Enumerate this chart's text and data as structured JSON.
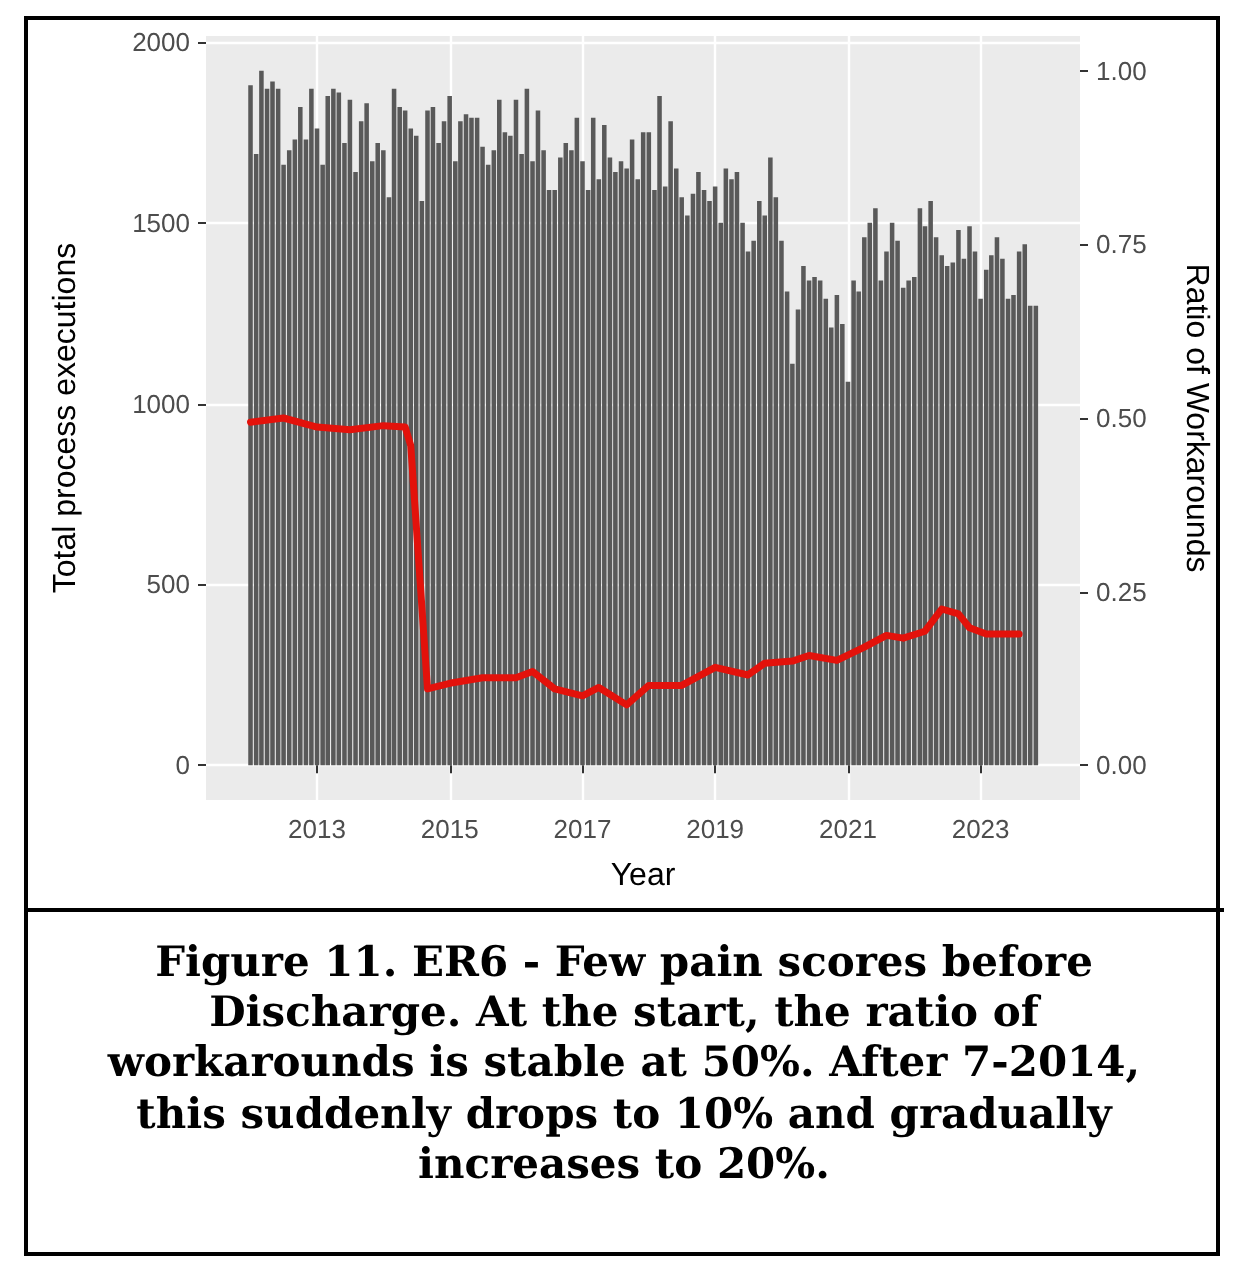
{
  "chart_data": {
    "type": "bar",
    "xlabel": "Year",
    "ylabel": "Total process executions",
    "y2label": "Ratio of Workarounds",
    "annotations": [
      "Figure 11. ER6 - Few pain scores before Discharge. At the start, the ratio of workarounds is stable at 50%. After 7-2014, this suddenly drops to 10% and gradually increases to 20%."
    ],
    "x": [
      "2012-01",
      "2012-02",
      "2012-03",
      "2012-04",
      "2012-05",
      "2012-06",
      "2012-07",
      "2012-08",
      "2012-09",
      "2012-10",
      "2012-11",
      "2012-12",
      "2013-01",
      "2013-02",
      "2013-03",
      "2013-04",
      "2013-05",
      "2013-06",
      "2013-07",
      "2013-08",
      "2013-09",
      "2013-10",
      "2013-11",
      "2013-12",
      "2014-01",
      "2014-02",
      "2014-03",
      "2014-04",
      "2014-05",
      "2014-06",
      "2014-07",
      "2014-08",
      "2014-09",
      "2014-10",
      "2014-11",
      "2014-12",
      "2015-01",
      "2015-02",
      "2015-03",
      "2015-04",
      "2015-05",
      "2015-06",
      "2015-07",
      "2015-08",
      "2015-09",
      "2015-10",
      "2015-11",
      "2015-12",
      "2016-01",
      "2016-02",
      "2016-03",
      "2016-04",
      "2016-05",
      "2016-06",
      "2016-07",
      "2016-08",
      "2016-09",
      "2016-10",
      "2016-11",
      "2016-12",
      "2017-01",
      "2017-02",
      "2017-03",
      "2017-04",
      "2017-05",
      "2017-06",
      "2017-07",
      "2017-08",
      "2017-09",
      "2017-10",
      "2017-11",
      "2017-12",
      "2018-01",
      "2018-02",
      "2018-03",
      "2018-04",
      "2018-05",
      "2018-06",
      "2018-07",
      "2018-08",
      "2018-09",
      "2018-10",
      "2018-11",
      "2018-12",
      "2019-01",
      "2019-02",
      "2019-03",
      "2019-04",
      "2019-05",
      "2019-06",
      "2019-07",
      "2019-08",
      "2019-09",
      "2019-10",
      "2019-11",
      "2019-12",
      "2020-01",
      "2020-02",
      "2020-03",
      "2020-04",
      "2020-05",
      "2020-06",
      "2020-07",
      "2020-08",
      "2020-09",
      "2020-10",
      "2020-11",
      "2020-12",
      "2021-01",
      "2021-02",
      "2021-03",
      "2021-04",
      "2021-05",
      "2021-06",
      "2021-07",
      "2021-08",
      "2021-09",
      "2021-10",
      "2021-11",
      "2021-12",
      "2022-01",
      "2022-02",
      "2022-03",
      "2022-04",
      "2022-05",
      "2022-06",
      "2022-07",
      "2022-08",
      "2022-09",
      "2022-10",
      "2022-11",
      "2022-12",
      "2023-01",
      "2023-02",
      "2023-03",
      "2023-04",
      "2023-05",
      "2023-06",
      "2023-07",
      "2023-08",
      "2023-09",
      "2023-10",
      "2023-11"
    ],
    "series": [
      {
        "color": "#595959",
        "values": [
          1880,
          1690,
          1920,
          1870,
          1890,
          1870,
          1660,
          1700,
          1730,
          1820,
          1730,
          1870,
          1760,
          1660,
          1850,
          1870,
          1860,
          1720,
          1840,
          1640,
          1780,
          1830,
          1670,
          1720,
          1700,
          1570,
          1870,
          1820,
          1810,
          1760,
          1740,
          1560,
          1810,
          1820,
          1720,
          1780,
          1850,
          1670,
          1780,
          1800,
          1790,
          1790,
          1710,
          1660,
          1700,
          1840,
          1750,
          1740,
          1840,
          1690,
          1870,
          1670,
          1810,
          1700,
          1590,
          1590,
          1680,
          1720,
          1700,
          1790,
          1670,
          1590,
          1790,
          1620,
          1770,
          1680,
          1640,
          1670,
          1650,
          1730,
          1620,
          1750,
          1750,
          1590,
          1850,
          1600,
          1780,
          1650,
          1570,
          1520,
          1580,
          1640,
          1590,
          1560,
          1600,
          1500,
          1650,
          1620,
          1640,
          1500,
          1420,
          1450,
          1560,
          1520,
          1680,
          1570,
          1450,
          1310,
          1110,
          1260,
          1380,
          1340,
          1350,
          1340,
          1290,
          1210,
          1300,
          1220,
          1060,
          1340,
          1310,
          1460,
          1500,
          1540,
          1340,
          1420,
          1500,
          1450,
          1320,
          1340,
          1350,
          1540,
          1490,
          1560,
          1460,
          1410,
          1380,
          1390,
          1480,
          1400,
          1490,
          1420,
          1290,
          1370,
          1410,
          1460,
          1400,
          1290,
          1300,
          1420,
          1440,
          1270,
          1270
        ]
      },
      {
        "type": "line",
        "axis": "y2",
        "color": "#e3120b",
        "x": [
          "2012-01",
          "2012-07",
          "2013-01",
          "2013-07",
          "2014-01",
          "2014-05",
          "2014-06",
          "2014-09",
          "2015-01",
          "2015-07",
          "2016-01",
          "2016-04",
          "2016-08",
          "2017-01",
          "2017-04",
          "2017-09",
          "2018-01",
          "2018-07",
          "2019-01",
          "2019-07",
          "2019-10",
          "2020-03",
          "2020-06",
          "2020-11",
          "2021-04",
          "2021-08",
          "2021-11",
          "2022-03",
          "2022-06",
          "2022-09",
          "2022-11",
          "2023-02",
          "2023-08"
        ],
        "values": [
          0.494,
          0.5,
          0.487,
          0.483,
          0.489,
          0.487,
          0.46,
          0.11,
          0.118,
          0.126,
          0.126,
          0.135,
          0.11,
          0.1,
          0.112,
          0.087,
          0.115,
          0.115,
          0.141,
          0.13,
          0.147,
          0.15,
          0.158,
          0.151,
          0.17,
          0.187,
          0.183,
          0.193,
          0.225,
          0.218,
          0.198,
          0.189,
          0.189
        ]
      }
    ],
    "xlim": [
      "2011-05",
      "2024-07"
    ],
    "xticks": [
      "2013",
      "2015",
      "2017",
      "2019",
      "2021",
      "2023"
    ],
    "ylim": [
      -96,
      2016
    ],
    "yticks": [
      0,
      500,
      1000,
      1500,
      2000
    ],
    "y2lim": [
      -0.05,
      1.05
    ],
    "y2ticks": [
      {
        "value": 0,
        "label": "0.00"
      },
      {
        "value": 0.25,
        "label": "0.25"
      },
      {
        "value": 0.5,
        "label": "0.50"
      },
      {
        "value": 0.75,
        "label": "0.75"
      },
      {
        "value": 1,
        "label": "1.00"
      }
    ],
    "grid": true
  }
}
